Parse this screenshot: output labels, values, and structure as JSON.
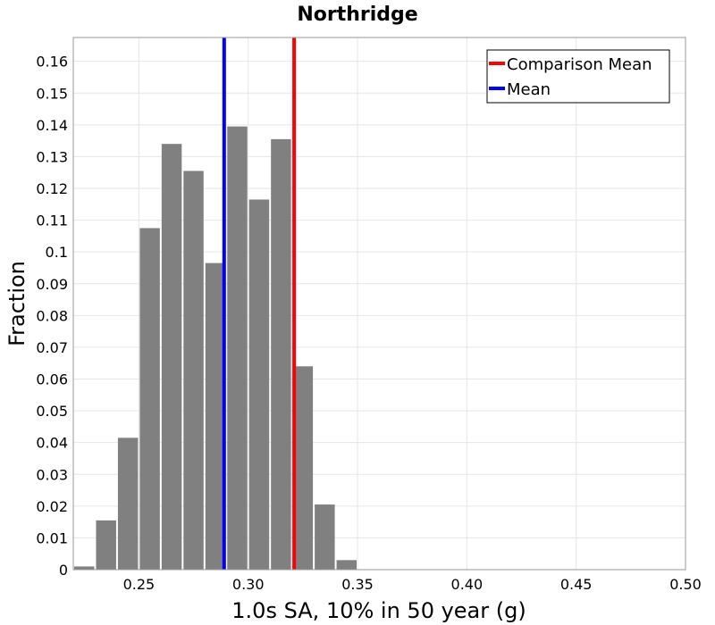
{
  "chart_data": {
    "type": "bar",
    "title": "Northridge",
    "xlabel": "1.0s SA, 10% in 50 year (g)",
    "ylabel": "Fraction",
    "xlim": [
      0.22,
      0.5
    ],
    "ylim": [
      0,
      0.1675
    ],
    "bin_width": 0.01,
    "x_ticks": [
      0.25,
      0.3,
      0.35,
      0.4,
      0.45,
      0.5
    ],
    "x_tick_labels": [
      "0.25",
      "0.30",
      "0.35",
      "0.40",
      "0.45",
      "0.50"
    ],
    "y_ticks": [
      0,
      0.01,
      0.02,
      0.03,
      0.04,
      0.05,
      0.06,
      0.07,
      0.08,
      0.09,
      0.1,
      0.11,
      0.12,
      0.13,
      0.14,
      0.15,
      0.16
    ],
    "y_tick_labels": [
      "0",
      "0.01",
      "0.02",
      "0.03",
      "0.04",
      "0.05",
      "0.06",
      "0.07",
      "0.08",
      "0.09",
      "0.1",
      "0.11",
      "0.12",
      "0.13",
      "0.14",
      "0.15",
      "0.16"
    ],
    "bins": [
      {
        "start": 0.22,
        "value": 0.001
      },
      {
        "start": 0.23,
        "value": 0.0155
      },
      {
        "start": 0.24,
        "value": 0.0415
      },
      {
        "start": 0.25,
        "value": 0.1075
      },
      {
        "start": 0.26,
        "value": 0.134
      },
      {
        "start": 0.27,
        "value": 0.1255
      },
      {
        "start": 0.28,
        "value": 0.0965
      },
      {
        "start": 0.29,
        "value": 0.1395
      },
      {
        "start": 0.3,
        "value": 0.1165
      },
      {
        "start": 0.31,
        "value": 0.1355
      },
      {
        "start": 0.32,
        "value": 0.064
      },
      {
        "start": 0.33,
        "value": 0.0205
      },
      {
        "start": 0.34,
        "value": 0.003
      }
    ],
    "vertical_lines": [
      {
        "name": "Comparison Mean",
        "x": 0.321,
        "color": "#ff0000"
      },
      {
        "name": "Mean",
        "x": 0.289,
        "color": "#0000ff"
      }
    ],
    "legend": {
      "position": "top-right",
      "entries": [
        {
          "label": "Comparison Mean",
          "color": "#ff0000"
        },
        {
          "label": "Mean",
          "color": "#0000ff"
        }
      ]
    },
    "grid": true,
    "bar_color": "#808080"
  }
}
